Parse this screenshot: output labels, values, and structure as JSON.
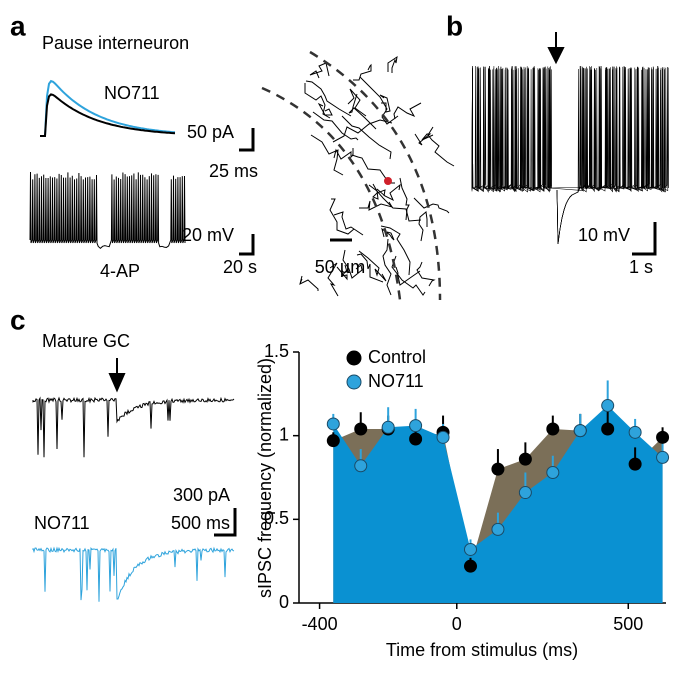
{
  "panels": {
    "a": {
      "label": "a",
      "title": "Pause interneuron",
      "trace_label": "NO711",
      "scale_current": "50 pA",
      "scale_time": "25 ms",
      "scale_voltage": "20 mV",
      "scale_time2": "20 s",
      "drug_label": "4-AP",
      "scale_length": "50 µm"
    },
    "b": {
      "label": "b",
      "scale_voltage": "10 mV",
      "scale_time": "1 s"
    },
    "c": {
      "label": "c",
      "title": "Mature GC",
      "scale_current": "300 pA",
      "scale_time": "500 ms",
      "trace_label": "NO711"
    }
  },
  "chart_data": {
    "type": "area",
    "xlabel": "Time from stimulus (ms)",
    "ylabel": "sIPSC frequency (normalized)",
    "x": [
      -360,
      -280,
      -200,
      -120,
      -40,
      40,
      120,
      200,
      280,
      360,
      440,
      520,
      600
    ],
    "series": [
      {
        "name": "Control",
        "color": "#000000",
        "area_color": "#7b6f58",
        "values": [
          0.97,
          1.04,
          1.04,
          0.98,
          1.02,
          0.22,
          0.8,
          0.86,
          1.04,
          1.03,
          1.04,
          0.83,
          0.99
        ],
        "errors": [
          0.05,
          0.1,
          0.08,
          0.08,
          0.1,
          0.05,
          0.12,
          0.1,
          0.08,
          0.1,
          0.12,
          0.1,
          0.06
        ]
      },
      {
        "name": "NO711",
        "color": "#2ea3dc",
        "area_color": "#0a91d2",
        "values": [
          1.07,
          0.82,
          1.05,
          1.06,
          0.99,
          0.32,
          0.44,
          0.66,
          0.78,
          1.03,
          1.18,
          1.02,
          0.87
        ],
        "errors": [
          0.06,
          0.1,
          0.12,
          0.1,
          0.08,
          0.06,
          0.1,
          0.12,
          0.1,
          0.1,
          0.15,
          0.08,
          0.1
        ]
      }
    ],
    "xlim": [
      -460,
      610
    ],
    "xticks": [
      -400,
      0,
      500
    ],
    "ylim": [
      0,
      1.5
    ],
    "yticks": [
      0,
      0.5,
      1,
      1.5
    ],
    "legend": "upper left"
  }
}
